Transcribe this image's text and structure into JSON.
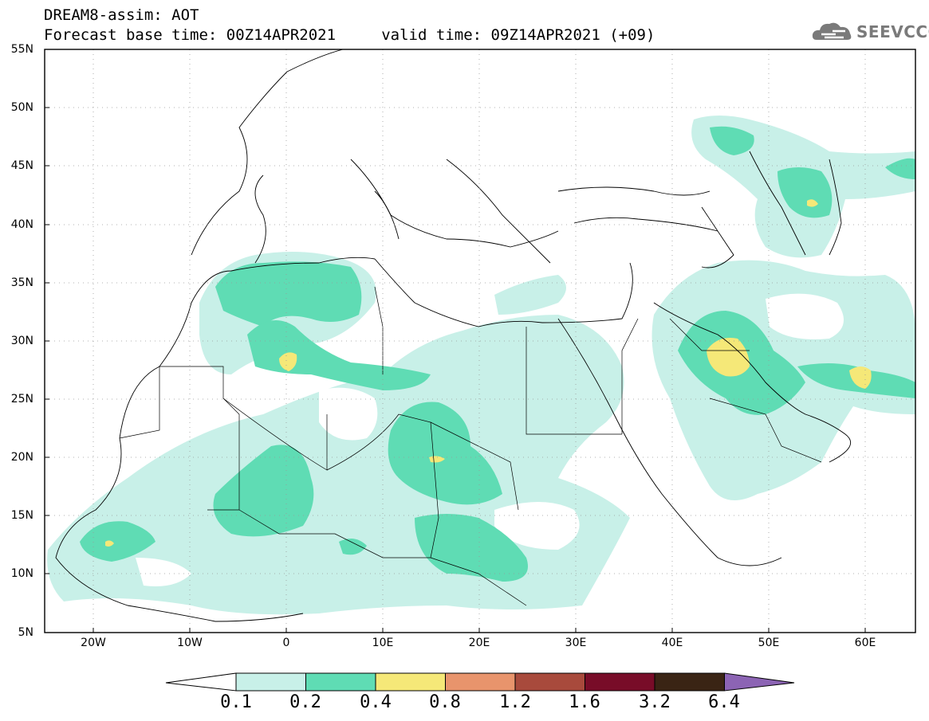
{
  "header": {
    "line1": "DREAM8-assim: AOT",
    "line2": "Forecast base time: 00Z14APR2021     valid time: 09Z14APR2021 (+09)"
  },
  "logo": {
    "text": "SEEVCCC",
    "color": "#7a7a7a"
  },
  "map": {
    "lat_labels": [
      "55N",
      "50N",
      "45N",
      "40N",
      "35N",
      "30N",
      "25N",
      "20N",
      "15N",
      "10N",
      "5N"
    ],
    "lon_labels": [
      "20W",
      "10W",
      "0",
      "10E",
      "20E",
      "30E",
      "40E",
      "50E",
      "60E"
    ],
    "grid": "dotted"
  },
  "colorbar": {
    "labels": [
      "0.1",
      "0.2",
      "0.4",
      "0.8",
      "1.2",
      "1.6",
      "3.2",
      "6.4"
    ],
    "colors": [
      "#ffffff",
      "#c8f0e8",
      "#5fdcb4",
      "#f5e878",
      "#e8946c",
      "#a84a3c",
      "#780c28",
      "#3a2414",
      "#8c64b4"
    ]
  }
}
